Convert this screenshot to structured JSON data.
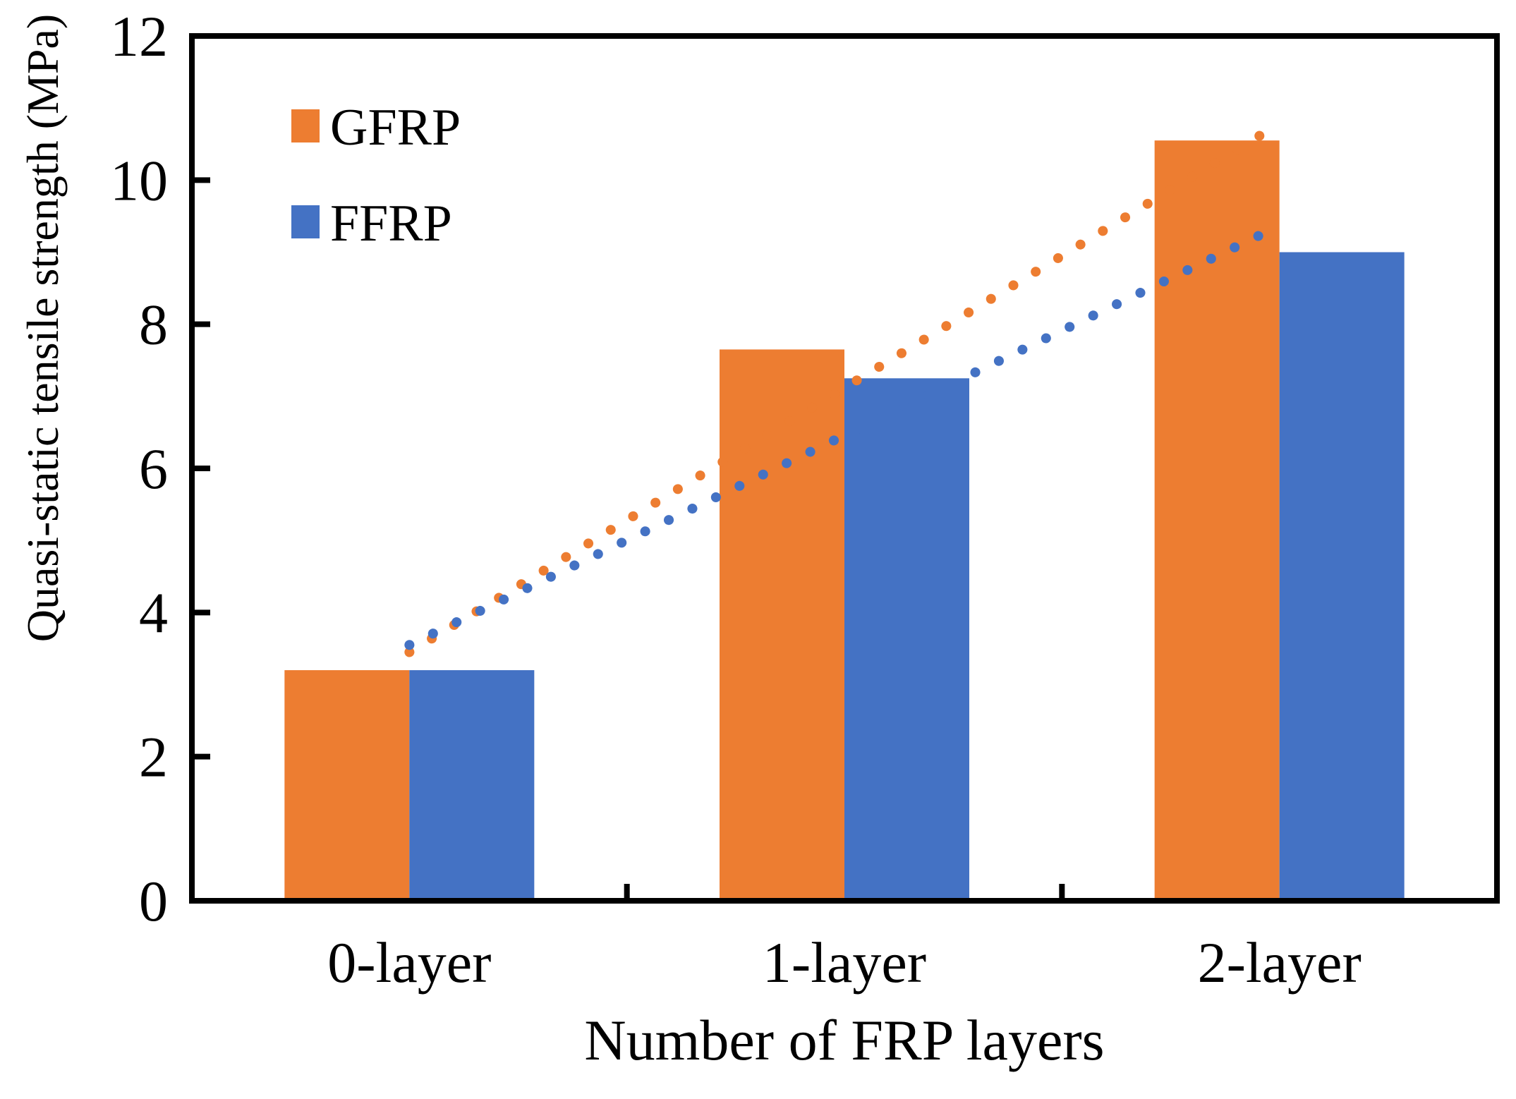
{
  "figure": {
    "background": "#FFFFFF",
    "axis_color": "#000000"
  },
  "chart_data": {
    "type": "bar",
    "title": "",
    "xlabel": "Number of FRP layers",
    "ylabel": "Quasi-static tensile strength (MPa)",
    "categories": [
      "0-layer",
      "1-layer",
      "2-layer"
    ],
    "series": [
      {
        "name": "GFRP",
        "color": "#ED7D31",
        "values": [
          3.2,
          7.65,
          10.55
        ]
      },
      {
        "name": "FFRP",
        "color": "#4472C4",
        "values": [
          3.2,
          7.25,
          9.0
        ]
      }
    ],
    "trendlines": [
      {
        "series": "GFRP",
        "color": "#ED7D31",
        "style": "dotted",
        "start_value": 3.45,
        "end_value": 10.7
      },
      {
        "series": "FFRP",
        "color": "#4472C4",
        "style": "dotted",
        "start_value": 3.55,
        "end_value": 9.3
      }
    ],
    "ylim": [
      0,
      12
    ],
    "yticks": [
      0,
      2,
      4,
      6,
      8,
      10,
      12
    ],
    "grid": false,
    "legend_position": "top-left-inside"
  }
}
